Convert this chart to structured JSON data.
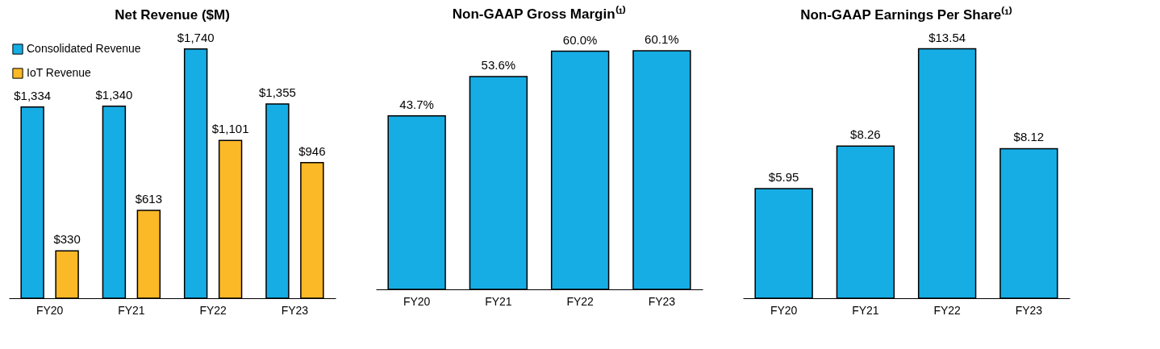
{
  "chart_data": [
    {
      "type": "bar",
      "title": "Net Revenue ($M)",
      "categories": [
        "FY20",
        "FY21",
        "FY22",
        "FY23"
      ],
      "legend": "top left",
      "series": [
        {
          "name": "Consolidated Revenue",
          "color": "#16ade4",
          "values": [
            1334,
            1340,
            1740,
            1355
          ],
          "value_labels": [
            "$1,334",
            "$1,340",
            "$1,740",
            "$1,355"
          ]
        },
        {
          "name": "IoT Revenue",
          "color": "#fbb827",
          "values": [
            330,
            613,
            1101,
            946
          ],
          "value_labels": [
            "$330",
            "$613",
            "$1,101",
            "$946"
          ]
        }
      ]
    },
    {
      "type": "bar",
      "title": "Non-GAAP Gross Margin⁽¹⁾",
      "categories": [
        "FY20",
        "FY21",
        "FY22",
        "FY23"
      ],
      "series": [
        {
          "color": "#16ade4",
          "values": [
            43.7,
            53.6,
            60.0,
            60.1
          ],
          "value_labels": [
            "43.7%",
            "53.6%",
            "60.0%",
            "60.1%"
          ]
        }
      ]
    },
    {
      "type": "bar",
      "title": "Non-GAAP Earnings Per Share⁽¹⁾",
      "categories": [
        "FY20",
        "FY21",
        "FY22",
        "FY23"
      ],
      "series": [
        {
          "color": "#16ade4",
          "values": [
            5.95,
            8.26,
            13.54,
            8.12
          ],
          "value_labels": [
            "$5.95",
            "$8.26",
            "$13.54",
            "$8.12"
          ]
        }
      ]
    }
  ]
}
